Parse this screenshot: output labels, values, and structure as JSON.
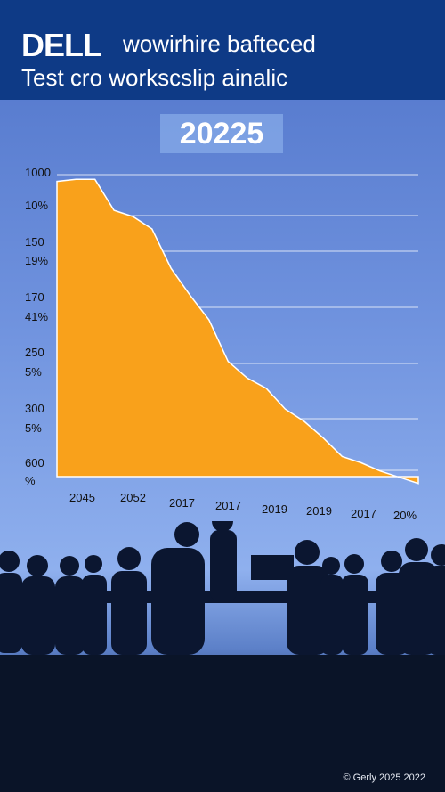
{
  "header": {
    "brand": "DELL",
    "title_line1": "wowirhire bafteced",
    "title_line2": "Test cro workscslip ainalic"
  },
  "year_badge": "20225",
  "footer": {
    "copyright": "© Gerly 2025 2022"
  },
  "colors": {
    "header": "#0e3a86",
    "area": "#f9a11b",
    "background": "#6f92de"
  },
  "chart_data": {
    "type": "area",
    "title": "",
    "y_tick_labels": [
      "1000",
      "10%",
      "150",
      "19%",
      "170",
      "41%",
      "250",
      "5%",
      "300",
      "5%",
      "600",
      "%"
    ],
    "x_tick_labels": [
      "2045",
      "2052",
      "2017",
      "2017",
      "2019",
      "2019",
      "2017",
      "20%"
    ],
    "series": [
      {
        "values": [
          100,
          101,
          101,
          86,
          83,
          77,
          58,
          45,
          33,
          13,
          5,
          0,
          -10,
          -16,
          -24,
          -33,
          -36,
          -40,
          -43,
          -46
        ]
      }
    ],
    "ylim": [
      -50,
      105
    ],
    "grid": true
  }
}
